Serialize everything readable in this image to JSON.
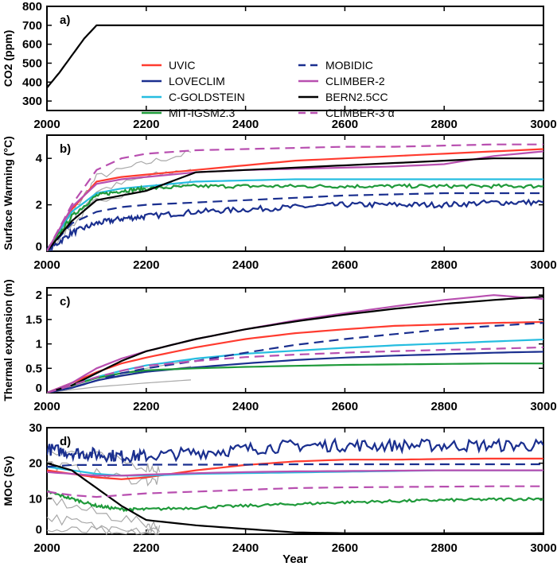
{
  "chart_data": [
    {
      "type": "line",
      "panel_label": "a)",
      "ylabel": "CO2 (ppm)",
      "xlim": [
        2000,
        3000
      ],
      "ylim": [
        250,
        800
      ],
      "xticks": [
        2000,
        2200,
        2400,
        2600,
        2800,
        3000
      ],
      "yticks": [
        300,
        400,
        500,
        600,
        700,
        800
      ],
      "x": [
        2000,
        2025,
        2050,
        2075,
        2100,
        3000
      ],
      "series": [
        {
          "values": [
            370,
            450,
            540,
            630,
            700,
            700
          ],
          "color": "#000000"
        }
      ],
      "legend": {
        "placement": "center",
        "entries": [
          {
            "name": "UVIC",
            "color": "#ff3b2f",
            "style": "solid"
          },
          {
            "name": "LOVECLIM",
            "color": "#1a2f8f",
            "style": "solid"
          },
          {
            "name": "C-GOLDSTEIN",
            "color": "#26bde0",
            "style": "solid"
          },
          {
            "name": "MIT-IGSM2.3",
            "color": "#1f9a3a",
            "style": "solid"
          },
          {
            "name": "MOBIDIC",
            "color": "#1a2f8f",
            "style": "dashed"
          },
          {
            "name": "CLIMBER-2",
            "color": "#b84fb0",
            "style": "solid"
          },
          {
            "name": "BERN2.5CC",
            "color": "#000000",
            "style": "solid"
          },
          {
            "name": "CLIMBER-3 α",
            "color": "#b84fb0",
            "style": "dashed"
          }
        ]
      }
    },
    {
      "type": "line",
      "panel_label": "b)",
      "ylabel": "Surface Warming (°C)",
      "xlim": [
        2000,
        3000
      ],
      "ylim": [
        0,
        5
      ],
      "xticks": [
        2000,
        2200,
        2400,
        2600,
        2800,
        3000
      ],
      "yticks": [
        0,
        2,
        4
      ],
      "x": [
        2000,
        2050,
        2100,
        2150,
        2200,
        2300,
        2400,
        2500,
        2600,
        2700,
        2800,
        2900,
        3000
      ],
      "series": [
        {
          "name": "UVIC",
          "values": [
            0,
            1.8,
            3.0,
            3.2,
            3.3,
            3.5,
            3.7,
            3.9,
            4.0,
            4.1,
            4.2,
            4.3,
            4.4
          ]
        },
        {
          "name": "LOVECLIM",
          "values": [
            0,
            0.8,
            1.2,
            1.4,
            1.5,
            1.7,
            1.8,
            1.9,
            2.0,
            2.0,
            2.0,
            2.1,
            2.1
          ]
        },
        {
          "name": "C-GOLDSTEIN",
          "values": [
            0,
            1.7,
            2.5,
            2.7,
            2.8,
            3.0,
            3.05,
            3.1,
            3.1,
            3.1,
            3.1,
            3.1,
            3.1
          ]
        },
        {
          "name": "MIT-IGSM2.3",
          "values": [
            0,
            1.5,
            2.4,
            2.6,
            2.7,
            2.8,
            2.8,
            2.8,
            2.8,
            2.8,
            2.8,
            2.8,
            2.8
          ]
        },
        {
          "name": "MOBIDIC",
          "values": [
            0,
            1.2,
            1.7,
            1.9,
            2.0,
            2.1,
            2.2,
            2.3,
            2.4,
            2.45,
            2.5,
            2.5,
            2.5
          ]
        },
        {
          "name": "CLIMBER-2",
          "values": [
            0,
            1.9,
            2.9,
            3.1,
            3.2,
            3.4,
            3.5,
            3.55,
            3.6,
            3.65,
            3.75,
            4.1,
            4.3
          ]
        },
        {
          "name": "BERN2.5CC",
          "values": [
            0,
            1.3,
            2.2,
            2.4,
            2.6,
            3.4,
            3.5,
            3.6,
            3.7,
            3.8,
            3.9,
            4.0,
            4.0
          ]
        },
        {
          "name": "CLIMBER-3 α",
          "values": [
            0,
            2.0,
            3.5,
            4.0,
            4.2,
            4.35,
            4.4,
            4.45,
            4.5,
            4.5,
            4.55,
            4.6,
            4.6
          ]
        }
      ],
      "ensemble_gray": {
        "x": [
          2000,
          2050,
          2100,
          2200,
          2300
        ],
        "series": [
          [
            0,
            1.6,
            3.2,
            3.8,
            4.3
          ],
          [
            0,
            1.3,
            2.6,
            3.2,
            3.6
          ],
          [
            0,
            1.1,
            2.2,
            2.7,
            3.0
          ]
        ]
      }
    },
    {
      "type": "line",
      "panel_label": "c)",
      "ylabel": "Thermal expansion (m)",
      "xlim": [
        2000,
        3000
      ],
      "ylim": [
        0,
        2.15
      ],
      "xticks": [
        2000,
        2200,
        2400,
        2600,
        2800,
        3000
      ],
      "yticks": [
        0,
        0.5,
        1,
        1.5,
        2
      ],
      "x": [
        2000,
        2050,
        2100,
        2150,
        2200,
        2300,
        2400,
        2500,
        2600,
        2700,
        2800,
        2900,
        3000
      ],
      "series": [
        {
          "name": "UVIC",
          "values": [
            0,
            0.2,
            0.42,
            0.6,
            0.72,
            0.93,
            1.1,
            1.22,
            1.3,
            1.37,
            1.4,
            1.43,
            1.45
          ]
        },
        {
          "name": "LOVECLIM",
          "values": [
            0,
            0.1,
            0.25,
            0.35,
            0.43,
            0.52,
            0.6,
            0.67,
            0.72,
            0.76,
            0.79,
            0.82,
            0.84
          ]
        },
        {
          "name": "C-GOLDSTEIN",
          "values": [
            0,
            0.15,
            0.32,
            0.45,
            0.56,
            0.7,
            0.8,
            0.86,
            0.92,
            0.97,
            1.01,
            1.05,
            1.09
          ]
        },
        {
          "name": "MIT-IGSM2.3",
          "values": [
            0,
            0.15,
            0.3,
            0.4,
            0.46,
            0.5,
            0.53,
            0.55,
            0.57,
            0.58,
            0.59,
            0.6,
            0.6
          ]
        },
        {
          "name": "MOBIDIC",
          "values": [
            0,
            0.1,
            0.25,
            0.4,
            0.5,
            0.65,
            0.82,
            0.98,
            1.1,
            1.2,
            1.3,
            1.37,
            1.43
          ]
        },
        {
          "name": "CLIMBER-2",
          "values": [
            0,
            0.2,
            0.5,
            0.7,
            0.85,
            1.1,
            1.3,
            1.48,
            1.63,
            1.77,
            1.9,
            2.0,
            1.92
          ]
        },
        {
          "name": "BERN2.5CC",
          "values": [
            0,
            0.15,
            0.4,
            0.65,
            0.85,
            1.1,
            1.3,
            1.46,
            1.6,
            1.72,
            1.82,
            1.9,
            1.97
          ]
        },
        {
          "name": "CLIMBER-3 α",
          "values": [
            0,
            0.15,
            0.32,
            0.45,
            0.55,
            0.65,
            0.73,
            0.78,
            0.82,
            0.85,
            0.88,
            0.9,
            0.93
          ]
        }
      ],
      "ensemble_gray": {
        "x": [
          2000,
          2100,
          2200,
          2300
        ],
        "series": [
          [
            0,
            0.3,
            0.5,
            0.68
          ],
          [
            0,
            0.25,
            0.42,
            0.55
          ],
          [
            0,
            0.12,
            0.2,
            0.27
          ]
        ]
      }
    },
    {
      "type": "line",
      "panel_label": "d)",
      "ylabel": "MOC (Sv)",
      "xlabel": "Year",
      "xlim": [
        2000,
        3000
      ],
      "ylim": [
        0,
        30
      ],
      "xticks": [
        2000,
        2200,
        2400,
        2600,
        2800,
        3000
      ],
      "yticks": [
        0,
        10,
        20,
        30
      ],
      "x": [
        2000,
        2050,
        2100,
        2150,
        2200,
        2300,
        2400,
        2500,
        2600,
        2700,
        2800,
        2900,
        3000
      ],
      "series": [
        {
          "name": "UVIC",
          "values": [
            18,
            17,
            16,
            15.5,
            16,
            18,
            19.5,
            20.5,
            21,
            21,
            21.2,
            21.3,
            21.3
          ]
        },
        {
          "name": "LOVECLIM",
          "values": [
            24,
            23,
            22.5,
            22,
            22,
            23,
            24,
            25,
            25,
            25,
            25,
            25,
            25
          ]
        },
        {
          "name": "C-GOLDSTEIN",
          "values": [
            19,
            18,
            17,
            16.5,
            16.5,
            17,
            17.2,
            17.4,
            17.6,
            17.8,
            18,
            18,
            18
          ]
        },
        {
          "name": "MIT-IGSM2.3",
          "values": [
            12,
            10,
            8,
            7,
            7,
            7.5,
            8,
            8.5,
            9,
            9.3,
            9.6,
            9.8,
            10
          ]
        },
        {
          "name": "MOBIDIC",
          "values": [
            19,
            19.5,
            19.5,
            19.5,
            19.6,
            19.6,
            19.6,
            19.7,
            19.7,
            19.7,
            19.7,
            19.7,
            19.7
          ]
        },
        {
          "name": "CLIMBER-2",
          "values": [
            17.5,
            17,
            16.5,
            16.5,
            16.8,
            17.2,
            17.5,
            17.7,
            17.8,
            17.9,
            18,
            18,
            18
          ]
        },
        {
          "name": "BERN2.5CC",
          "values": [
            20,
            18,
            13,
            8,
            4,
            2.5,
            1.5,
            0.5,
            0.3,
            0.3,
            0.3,
            0.3,
            0.3
          ]
        },
        {
          "name": "CLIMBER-3 α",
          "values": [
            12,
            11,
            10.5,
            11,
            11.5,
            12,
            12.5,
            13,
            13.2,
            13.3,
            13.4,
            13.5,
            13.5
          ]
        }
      ],
      "ensemble_gray": {
        "x": [
          2000,
          2100,
          2200,
          2230
        ],
        "series": [
          [
            24,
            22,
            19,
            18
          ],
          [
            20,
            17,
            15,
            15
          ],
          [
            10,
            6,
            3,
            2
          ],
          [
            5,
            2,
            1,
            1
          ],
          [
            1,
            0.8,
            0.5,
            0.5
          ]
        ]
      }
    }
  ]
}
